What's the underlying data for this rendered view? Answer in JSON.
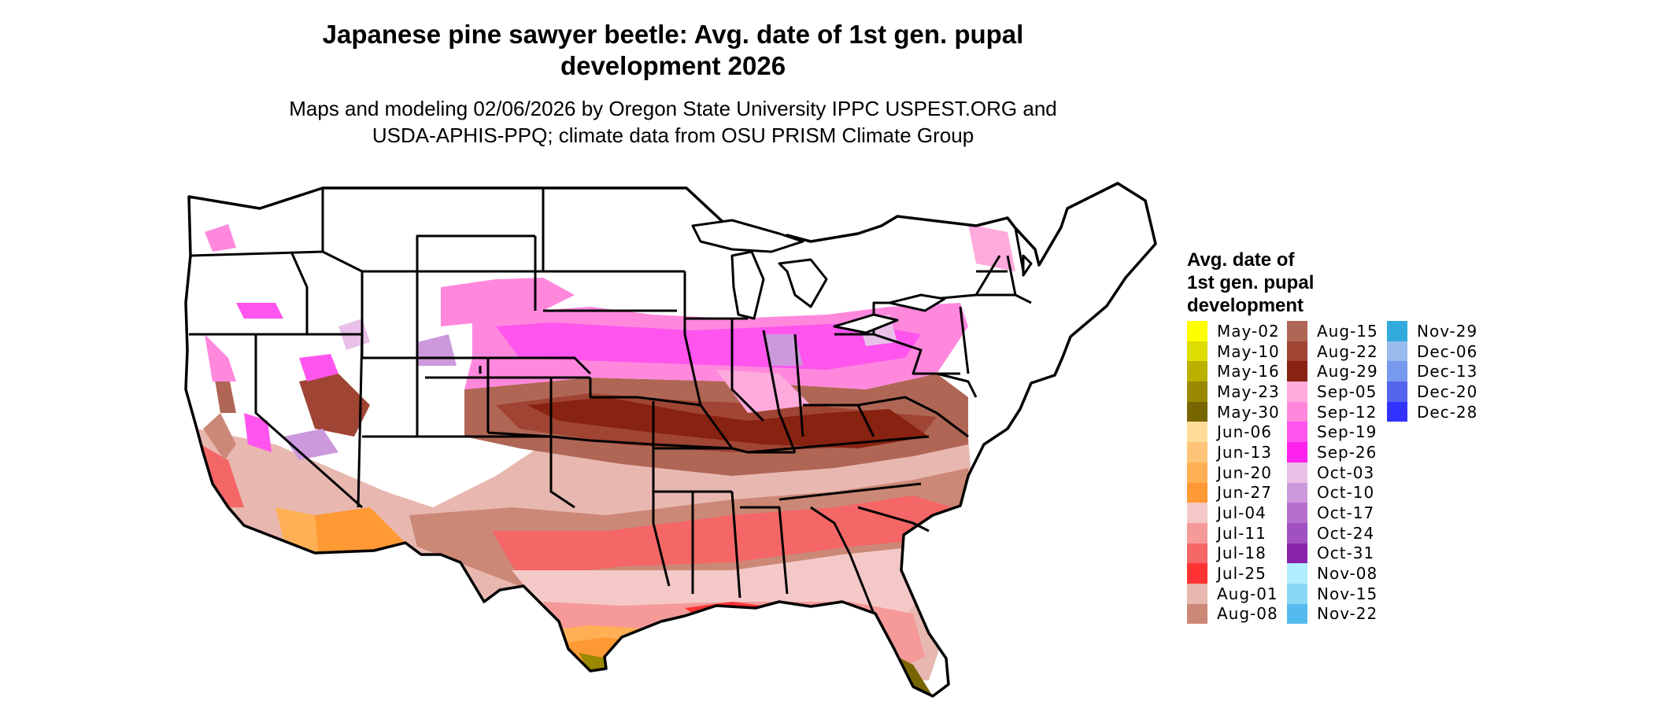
{
  "title_lines": [
    "Japanese pine sawyer beetle: Avg. date of 1st gen. pupal",
    "development 2026"
  ],
  "subtitle_lines": [
    "Maps and modeling 02/06/2026 by Oregon State University IPPC USPEST.ORG and",
    "USDA-APHIS-PPQ; climate data from OSU PRISM Climate Group"
  ],
  "legend": {
    "title_lines": [
      "Avg. date of",
      "1st gen. pupal",
      "development"
    ],
    "columns": [
      [
        {
          "label": "May-02",
          "color": "#ffff00"
        },
        {
          "label": "May-10",
          "color": "#dddd00"
        },
        {
          "label": "May-16",
          "color": "#bbb000"
        },
        {
          "label": "May-23",
          "color": "#998800"
        },
        {
          "label": "May-30",
          "color": "#776600"
        },
        {
          "label": "Jun-06",
          "color": "#ffdd99"
        },
        {
          "label": "Jun-13",
          "color": "#ffc477"
        },
        {
          "label": "Jun-20",
          "color": "#ffb055"
        },
        {
          "label": "Jun-27",
          "color": "#ff9933"
        },
        {
          "label": "Jul-04",
          "color": "#f5c8c8"
        },
        {
          "label": "Jul-11",
          "color": "#f59999"
        },
        {
          "label": "Jul-18",
          "color": "#f56666"
        },
        {
          "label": "Jul-25",
          "color": "#ff3333"
        },
        {
          "label": "Aug-01",
          "color": "#e8b8b0"
        },
        {
          "label": "Aug-08",
          "color": "#cc8877"
        }
      ],
      [
        {
          "label": "Aug-15",
          "color": "#b06655"
        },
        {
          "label": "Aug-22",
          "color": "#a04433"
        },
        {
          "label": "Aug-29",
          "color": "#882211"
        },
        {
          "label": "Sep-05",
          "color": "#ffaadd"
        },
        {
          "label": "Sep-12",
          "color": "#ff88dd"
        },
        {
          "label": "Sep-19",
          "color": "#ff55ee"
        },
        {
          "label": "Sep-26",
          "color": "#ff22ee"
        },
        {
          "label": "Oct-03",
          "color": "#e8c0e8"
        },
        {
          "label": "Oct-10",
          "color": "#cc99dd"
        },
        {
          "label": "Oct-17",
          "color": "#b570cc"
        },
        {
          "label": "Oct-24",
          "color": "#a050c0"
        },
        {
          "label": "Oct-31",
          "color": "#8822aa"
        },
        {
          "label": "Nov-08",
          "color": "#b0eeff"
        },
        {
          "label": "Nov-15",
          "color": "#88d8f5"
        },
        {
          "label": "Nov-22",
          "color": "#55bbee"
        }
      ],
      [
        {
          "label": "Nov-29",
          "color": "#33aadd"
        },
        {
          "label": "Dec-06",
          "color": "#99bbee"
        },
        {
          "label": "Dec-13",
          "color": "#7799ee"
        },
        {
          "label": "Dec-20",
          "color": "#5566ee"
        },
        {
          "label": "Dec-28",
          "color": "#3333ff"
        }
      ]
    ]
  }
}
